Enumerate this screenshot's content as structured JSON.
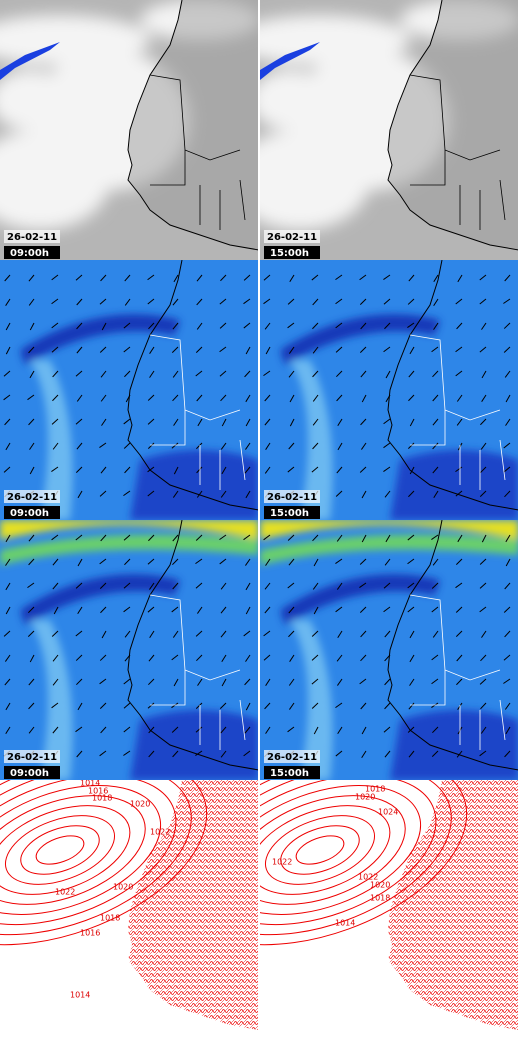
{
  "panels": [
    {
      "date": "26-02-11",
      "time": "09:00h"
    },
    {
      "date": "26-02-11",
      "time": "15:00h"
    },
    {
      "date": "26-02-11",
      "time": "09:00h"
    },
    {
      "date": "26-02-11",
      "time": "15:00h"
    },
    {
      "date": "26-02-11",
      "time": "09:00h"
    },
    {
      "date": "26-02-11",
      "time": "15:00h"
    },
    {
      "contour_labels": [
        1014,
        1016,
        1018,
        1020,
        1022,
        1022,
        1020,
        1018,
        1016,
        1014
      ]
    },
    {
      "contour_labels": [
        1018,
        1020,
        1024,
        1022,
        1022,
        1020,
        1018,
        1014
      ]
    }
  ]
}
